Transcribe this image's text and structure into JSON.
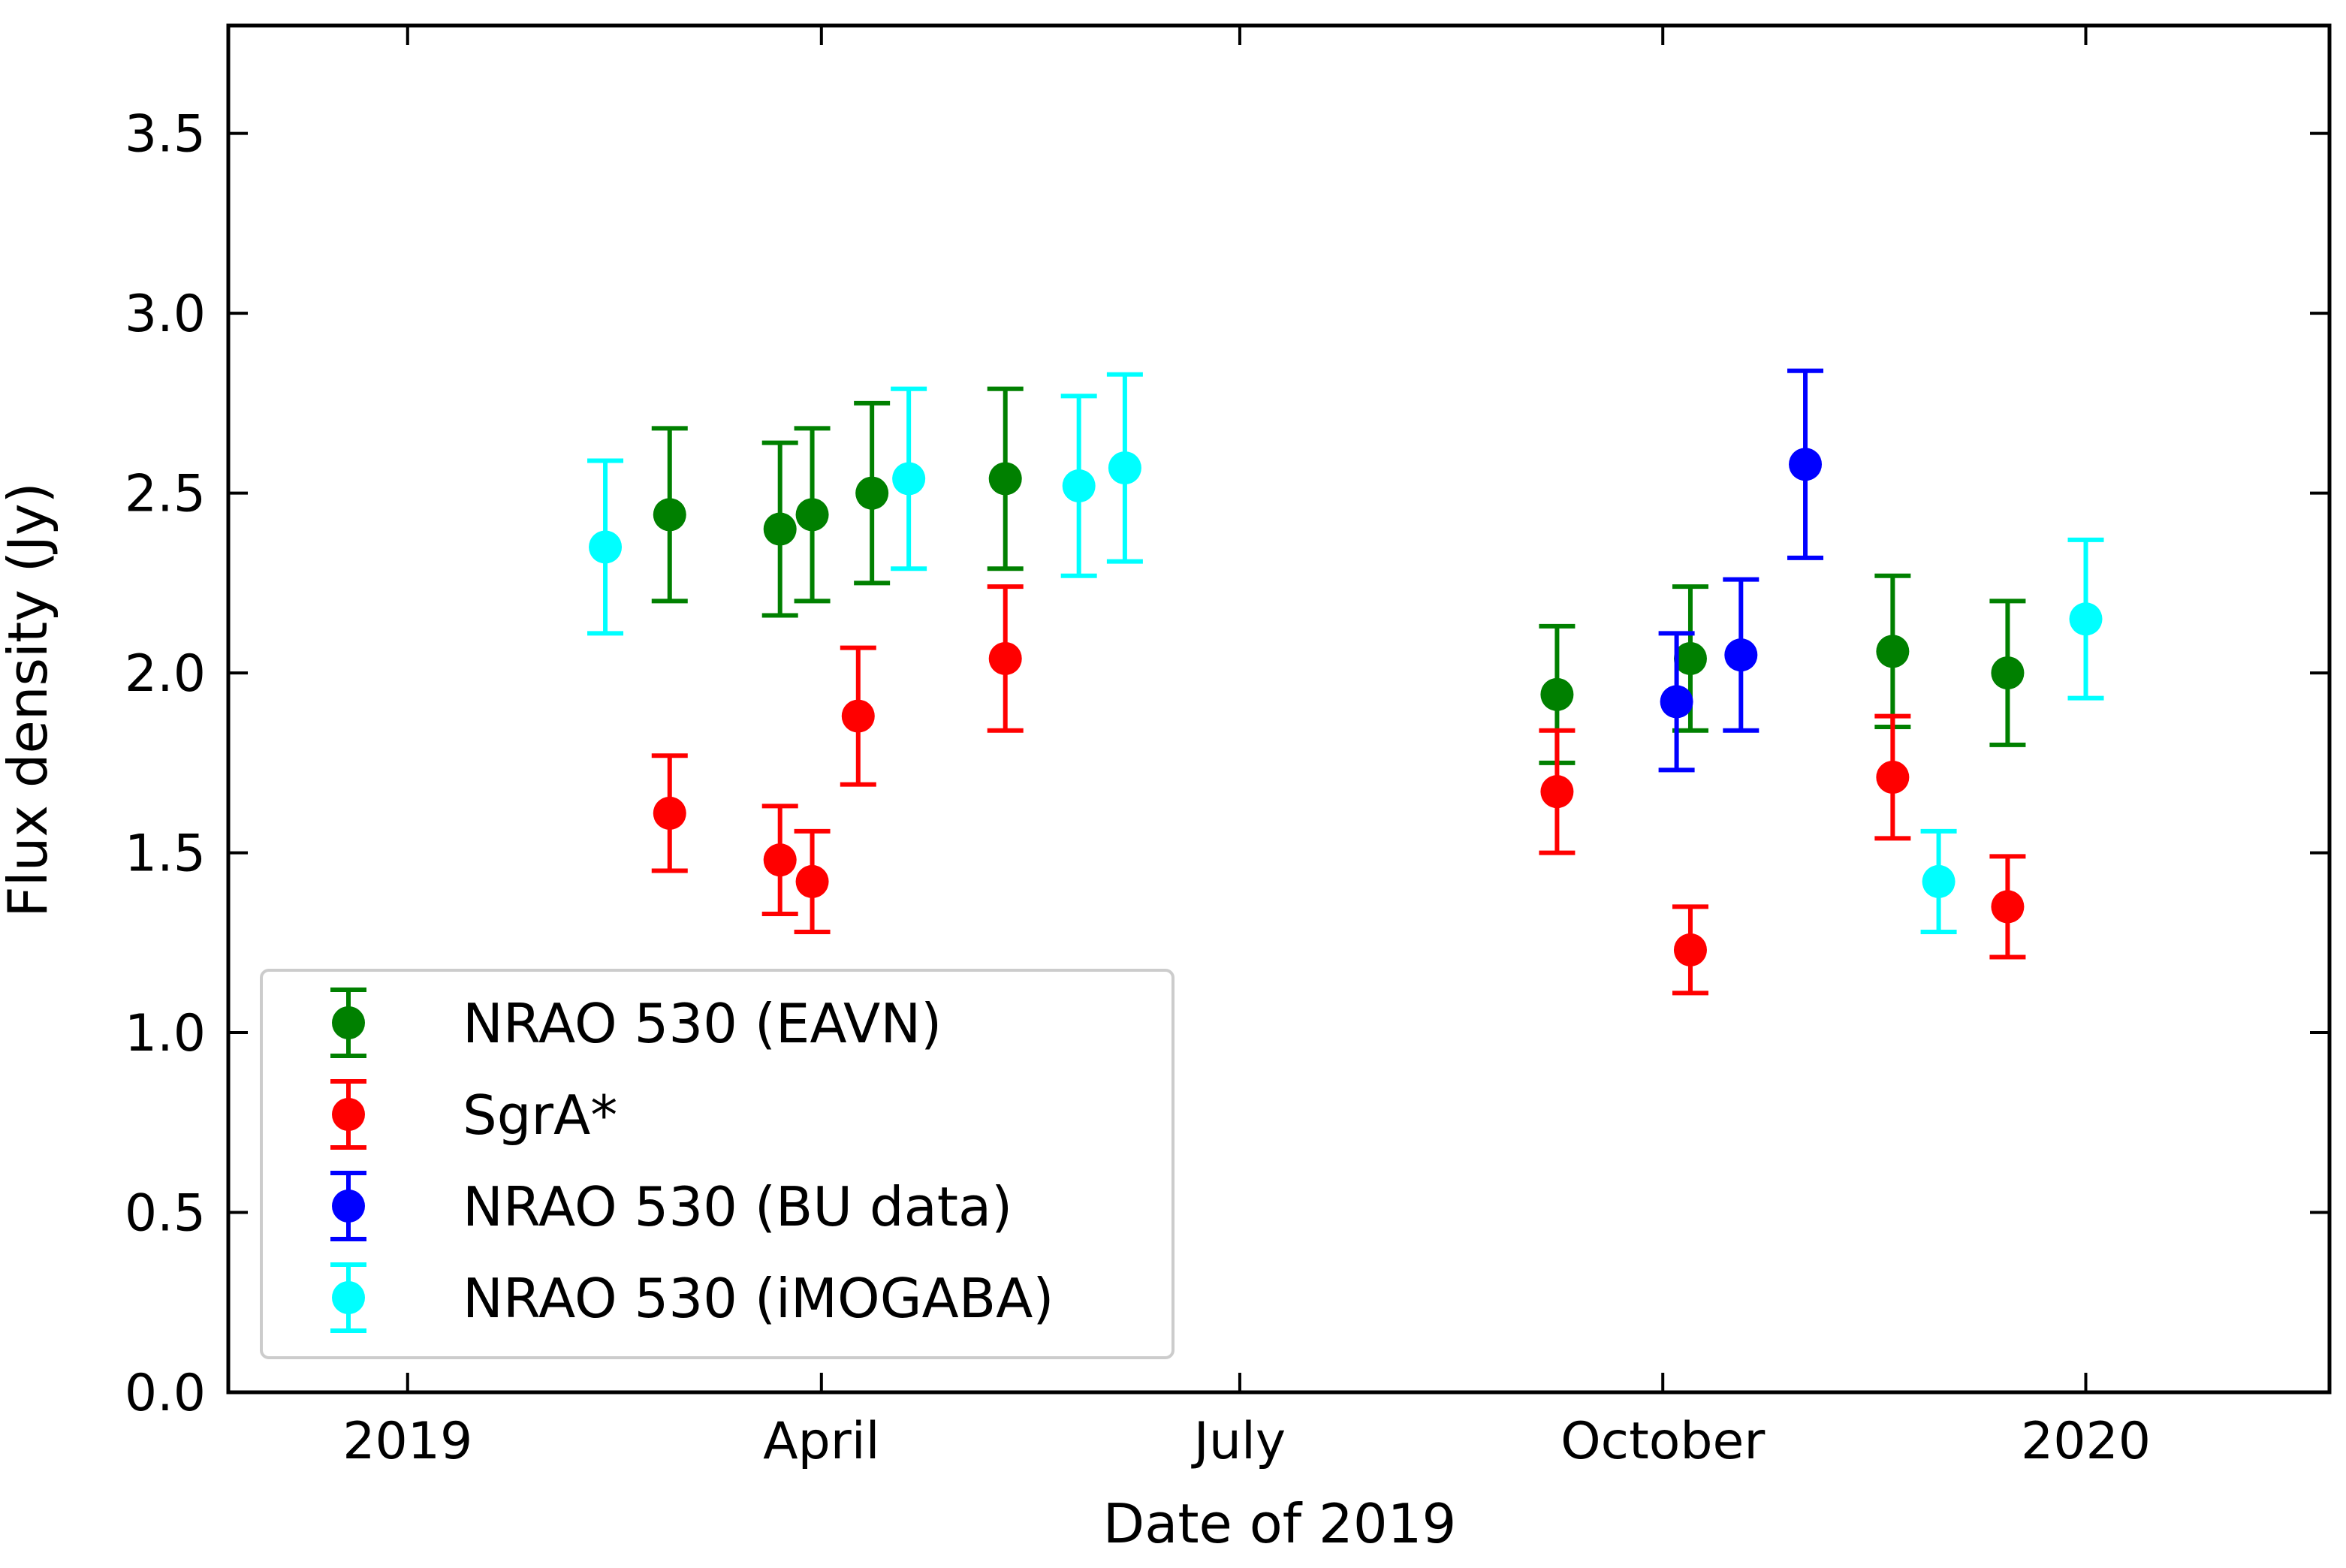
{
  "chart_data": {
    "type": "scatter",
    "title": "",
    "xlabel": "Date of 2019",
    "ylabel": "Flux density (Jy)",
    "x_unit": "day of 2019 (0 = 1 Jan 2019)",
    "xlim": [
      -39,
      418
    ],
    "ylim": [
      0,
      3.8
    ],
    "x_ticks": [
      {
        "value": 0,
        "label": "2019"
      },
      {
        "value": 90,
        "label": "April"
      },
      {
        "value": 181,
        "label": "July"
      },
      {
        "value": 273,
        "label": "October"
      },
      {
        "value": 365,
        "label": "2020"
      }
    ],
    "y_ticks": [
      {
        "value": 0.0,
        "label": "0.0"
      },
      {
        "value": 0.5,
        "label": "0.5"
      },
      {
        "value": 1.0,
        "label": "1.0"
      },
      {
        "value": 1.5,
        "label": "1.5"
      },
      {
        "value": 2.0,
        "label": "2.0"
      },
      {
        "value": 2.5,
        "label": "2.5"
      },
      {
        "value": 3.0,
        "label": "3.0"
      },
      {
        "value": 3.5,
        "label": "3.5"
      }
    ],
    "grid": false,
    "legend_position": "lower-left",
    "series": [
      {
        "name": "NRAO 530 (EAVN)",
        "color": "#008000",
        "points": [
          {
            "x": 57,
            "y": 2.44,
            "err": 0.24
          },
          {
            "x": 81,
            "y": 2.4,
            "err": 0.24
          },
          {
            "x": 88,
            "y": 2.44,
            "err": 0.24
          },
          {
            "x": 101,
            "y": 2.5,
            "err": 0.25
          },
          {
            "x": 130,
            "y": 2.54,
            "err": 0.25
          },
          {
            "x": 250,
            "y": 1.94,
            "err": 0.19
          },
          {
            "x": 279,
            "y": 2.04,
            "err": 0.2
          },
          {
            "x": 323,
            "y": 2.06,
            "err": 0.21
          },
          {
            "x": 348,
            "y": 2.0,
            "err": 0.2
          }
        ]
      },
      {
        "name": "SgrA*",
        "color": "#ff0000",
        "points": [
          {
            "x": 57,
            "y": 1.61,
            "err": 0.16
          },
          {
            "x": 81,
            "y": 1.48,
            "err": 0.15
          },
          {
            "x": 88,
            "y": 1.42,
            "err": 0.14
          },
          {
            "x": 98,
            "y": 1.88,
            "err": 0.19
          },
          {
            "x": 130,
            "y": 2.04,
            "err": 0.2
          },
          {
            "x": 250,
            "y": 1.67,
            "err": 0.17
          },
          {
            "x": 279,
            "y": 1.23,
            "err": 0.12
          },
          {
            "x": 323,
            "y": 1.71,
            "err": 0.17
          },
          {
            "x": 348,
            "y": 1.35,
            "err": 0.14
          }
        ]
      },
      {
        "name": "NRAO 530 (BU data)",
        "color": "#0000ff",
        "points": [
          {
            "x": 276,
            "y": 1.92,
            "err": 0.19
          },
          {
            "x": 290,
            "y": 2.05,
            "err": 0.21
          },
          {
            "x": 304,
            "y": 2.58,
            "err": 0.26
          }
        ]
      },
      {
        "name": "NRAO 530 (iMOGABA)",
        "color": "#00ffff",
        "points": [
          {
            "x": 43,
            "y": 2.35,
            "err": 0.24
          },
          {
            "x": 109,
            "y": 2.54,
            "err": 0.25
          },
          {
            "x": 146,
            "y": 2.52,
            "err": 0.25
          },
          {
            "x": 156,
            "y": 2.57,
            "err": 0.26
          },
          {
            "x": 333,
            "y": 1.42,
            "err": 0.14
          },
          {
            "x": 365,
            "y": 2.15,
            "err": 0.22
          }
        ]
      }
    ]
  }
}
